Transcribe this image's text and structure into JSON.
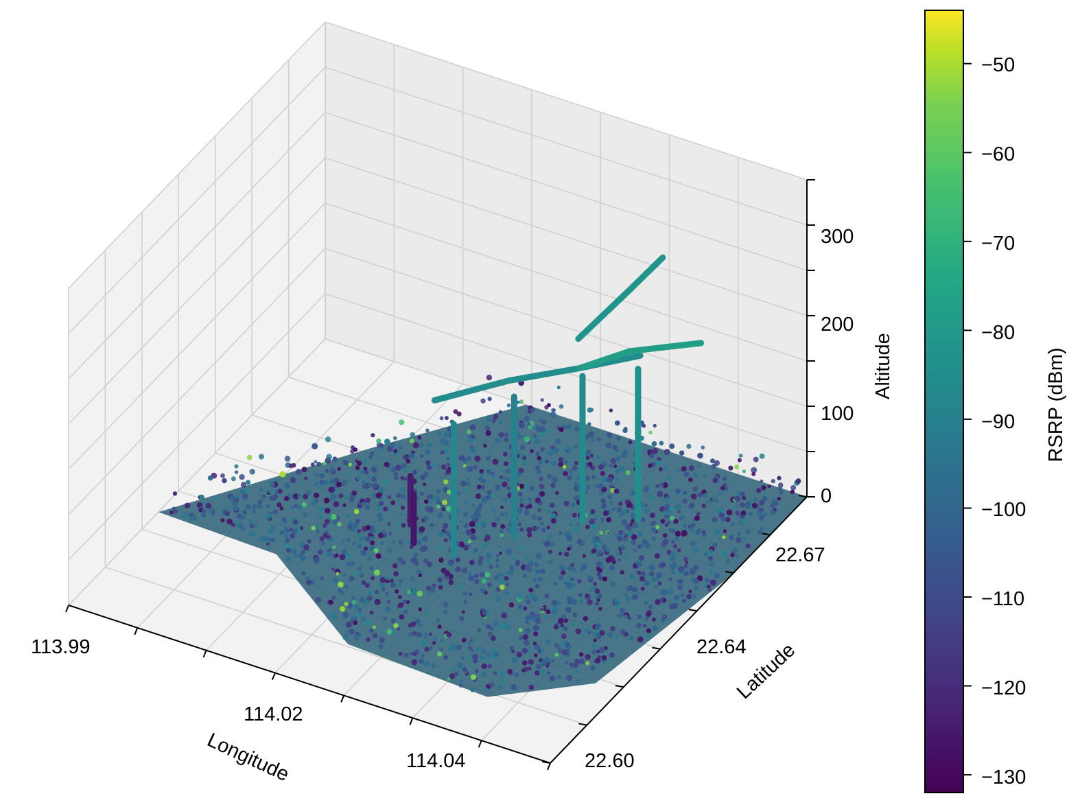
{
  "chart_data": {
    "type": "scatter",
    "projection": "3d",
    "colormap": "viridis",
    "grid": true,
    "xlabel": "Longitude",
    "ylabel": "Latitude",
    "zlabel": "Altitude",
    "x_ticks": [
      "113.99",
      "114.02",
      "114.04"
    ],
    "y_ticks": [
      "22.60",
      "22.64",
      "22.67"
    ],
    "z_ticks": [
      "0",
      "100",
      "200",
      "300"
    ],
    "xlim": [
      113.99,
      114.05
    ],
    "ylim": [
      22.59,
      22.69
    ],
    "zlim": [
      0,
      360
    ],
    "colorbar": {
      "label": "RSRP (dBm)",
      "range": [
        -132,
        -44
      ],
      "ticks": [
        "−50",
        "−60",
        "−70",
        "−80",
        "−90",
        "−100",
        "−110",
        "−120",
        "−130"
      ],
      "tick_values": [
        -50,
        -60,
        -70,
        -80,
        -90,
        -100,
        -110,
        -120,
        -130
      ]
    },
    "ground_region_points": [
      {
        "x": 113.99,
        "y": 22.625,
        "z": 0
      },
      {
        "x": 114.005,
        "y": 22.624,
        "z": 0
      },
      {
        "x": 114.02,
        "y": 22.605,
        "z": 0
      },
      {
        "x": 114.038,
        "y": 22.603,
        "z": 0
      },
      {
        "x": 114.047,
        "y": 22.617,
        "z": 0
      },
      {
        "x": 114.05,
        "y": 22.66,
        "z": 0
      },
      {
        "x": 114.05,
        "y": 22.69,
        "z": 0
      },
      {
        "x": 114.015,
        "y": 22.69,
        "z": 0
      },
      {
        "x": 114.005,
        "y": 22.665,
        "z": 0
      }
    ],
    "flight_paths": [
      {
        "rsrp": -85,
        "points": [
          {
            "x": 114.018,
            "y": 22.645,
            "z": 150
          },
          {
            "x": 114.024,
            "y": 22.655,
            "z": 160
          },
          {
            "x": 114.03,
            "y": 22.664,
            "z": 165
          },
          {
            "x": 114.035,
            "y": 22.672,
            "z": 170
          }
        ]
      },
      {
        "rsrp": -82,
        "points": [
          {
            "x": 114.026,
            "y": 22.676,
            "z": 150
          },
          {
            "x": 114.03,
            "y": 22.683,
            "z": 195
          },
          {
            "x": 114.033,
            "y": 22.687,
            "z": 230
          }
        ]
      },
      {
        "rsrp": -78,
        "points": [
          {
            "x": 114.03,
            "y": 22.664,
            "z": 165
          },
          {
            "x": 114.034,
            "y": 22.671,
            "z": 175
          },
          {
            "x": 114.04,
            "y": 22.68,
            "z": 175
          }
        ]
      }
    ],
    "vertical_columns": [
      {
        "x": 114.022,
        "y": 22.64,
        "z0": 0,
        "z1": 150,
        "rsrp": -88
      },
      {
        "x": 114.026,
        "y": 22.651,
        "z0": 0,
        "z1": 160,
        "rsrp": -90
      },
      {
        "x": 114.031,
        "y": 22.662,
        "z0": 0,
        "z1": 165,
        "rsrp": -86
      },
      {
        "x": 114.036,
        "y": 22.668,
        "z0": 0,
        "z1": 170,
        "rsrp": -84
      },
      {
        "x": 114.015,
        "y": 22.645,
        "z0": 0,
        "z1": 55,
        "rsrp": -124
      },
      {
        "x": 114.017,
        "y": 22.64,
        "z0": 0,
        "z1": 55,
        "rsrp": -126
      }
    ]
  }
}
